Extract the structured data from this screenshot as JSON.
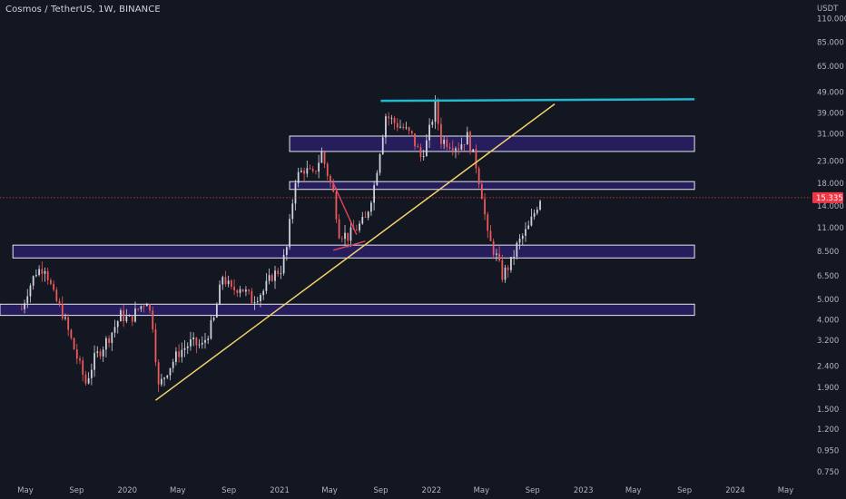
{
  "title": "Cosmos / TetherUS, 1W, BINANCE",
  "colors": {
    "background": "#131722",
    "up": "#d1d4dc",
    "down": "#f05a5a",
    "zone_fill": "#2a1f6b",
    "zone_border": "#e8e8f0",
    "trendline": "#f5d36a",
    "resistance": "#22b8d0",
    "pattern": "#e0455a",
    "price_tag": "#f23645"
  },
  "chart_data": {
    "type": "candlestick",
    "y_scale": "log",
    "y_unit": "USDT",
    "ylim": [
      0.68,
      135
    ],
    "y_ticks": [
      "110.000",
      "85.000",
      "65.000",
      "49.000",
      "39.000",
      "31.000",
      "23.000",
      "18.000",
      "14.000",
      "11.000",
      "8.500",
      "6.500",
      "5.000",
      "4.000",
      "3.200",
      "2.400",
      "1.900",
      "1.500",
      "1.200",
      "0.950",
      "0.750"
    ],
    "x_ticks": [
      "May",
      "Sep",
      "2020",
      "May",
      "Sep",
      "2021",
      "May",
      "Sep",
      "2022",
      "May",
      "Sep",
      "2023",
      "May",
      "Sep",
      "2024",
      "May"
    ],
    "x_range": [
      "2019-03-01",
      "2024-06-30"
    ],
    "last_price": "15.335",
    "close_path": [
      [
        "2019-04-22",
        4.5
      ],
      [
        "2019-05-06",
        5.5
      ],
      [
        "2019-05-27",
        6.8
      ],
      [
        "2019-06-17",
        7.2
      ],
      [
        "2019-07-08",
        5.2
      ],
      [
        "2019-07-29",
        4.3
      ],
      [
        "2019-08-19",
        3.2
      ],
      [
        "2019-09-09",
        2.4
      ],
      [
        "2019-09-23",
        2.0
      ],
      [
        "2019-10-14",
        2.6
      ],
      [
        "2019-11-04",
        3.0
      ],
      [
        "2019-11-25",
        3.5
      ],
      [
        "2019-12-16",
        4.2
      ],
      [
        "2020-01-06",
        4.0
      ],
      [
        "2020-01-27",
        4.5
      ],
      [
        "2020-02-17",
        5.0
      ],
      [
        "2020-03-02",
        3.8
      ],
      [
        "2020-03-16",
        1.9
      ],
      [
        "2020-04-06",
        2.3
      ],
      [
        "2020-05-04",
        2.8
      ],
      [
        "2020-06-01",
        3.1
      ],
      [
        "2020-06-29",
        3.0
      ],
      [
        "2020-07-27",
        4.0
      ],
      [
        "2020-08-17",
        6.5
      ],
      [
        "2020-09-07",
        5.5
      ],
      [
        "2020-09-28",
        5.8
      ],
      [
        "2020-10-26",
        5.0
      ],
      [
        "2020-11-23",
        5.5
      ],
      [
        "2020-12-14",
        6.5
      ],
      [
        "2021-01-04",
        7.0
      ],
      [
        "2021-01-18",
        8.8
      ],
      [
        "2021-02-08",
        19.0
      ],
      [
        "2021-03-01",
        21.0
      ],
      [
        "2021-03-22",
        19.5
      ],
      [
        "2021-04-12",
        25.0
      ],
      [
        "2021-04-26",
        20.0
      ],
      [
        "2021-05-10",
        16.0
      ],
      [
        "2021-05-24",
        10.5
      ],
      [
        "2021-06-14",
        10.0
      ],
      [
        "2021-07-05",
        11.0
      ],
      [
        "2021-07-26",
        12.0
      ],
      [
        "2021-08-16",
        17.5
      ],
      [
        "2021-08-30",
        26.0
      ],
      [
        "2021-09-13",
        38.0
      ],
      [
        "2021-10-04",
        35.0
      ],
      [
        "2021-10-25",
        33.0
      ],
      [
        "2021-11-15",
        30.0
      ],
      [
        "2021-12-06",
        24.0
      ],
      [
        "2021-12-20",
        28.0
      ],
      [
        "2022-01-10",
        42.0
      ],
      [
        "2022-01-24",
        29.0
      ],
      [
        "2022-02-14",
        28.0
      ],
      [
        "2022-03-07",
        27.0
      ],
      [
        "2022-03-28",
        30.0
      ],
      [
        "2022-04-18",
        22.0
      ],
      [
        "2022-05-02",
        16.0
      ],
      [
        "2022-05-16",
        10.0
      ],
      [
        "2022-06-06",
        8.0
      ],
      [
        "2022-06-20",
        6.5
      ],
      [
        "2022-07-11",
        7.5
      ],
      [
        "2022-07-25",
        9.0
      ],
      [
        "2022-08-08",
        10.0
      ],
      [
        "2022-08-22",
        11.0
      ],
      [
        "2022-09-05",
        13.0
      ],
      [
        "2022-09-19",
        15.335
      ]
    ]
  },
  "annotations": {
    "zones": [
      {
        "from": "2021-01-25",
        "to": "2023-09-25",
        "low": 25.5,
        "high": 30.2
      },
      {
        "from": "2021-01-25",
        "to": "2023-09-25",
        "low": 16.8,
        "high": 18.3
      },
      {
        "from": "2019-04-01",
        "to": "2023-09-25",
        "low": 7.9,
        "high": 9.1
      },
      {
        "from": "2019-03-01",
        "to": "2023-09-25",
        "low": 4.2,
        "high": 4.75
      }
    ],
    "trendline": {
      "from": [
        "2020-03-09",
        1.65
      ],
      "to": [
        "2022-10-24",
        43.0
      ]
    },
    "resistance": {
      "from": [
        "2021-09-01",
        44.5
      ],
      "to": [
        "2023-09-25",
        45.3
      ]
    },
    "pattern_lines": [
      {
        "from": [
          "2021-05-10",
          18.0
        ],
        "to": [
          "2021-07-05",
          10.2
        ]
      },
      {
        "from": [
          "2021-05-10",
          8.6
        ],
        "to": [
          "2021-07-26",
          9.5
        ]
      }
    ]
  }
}
